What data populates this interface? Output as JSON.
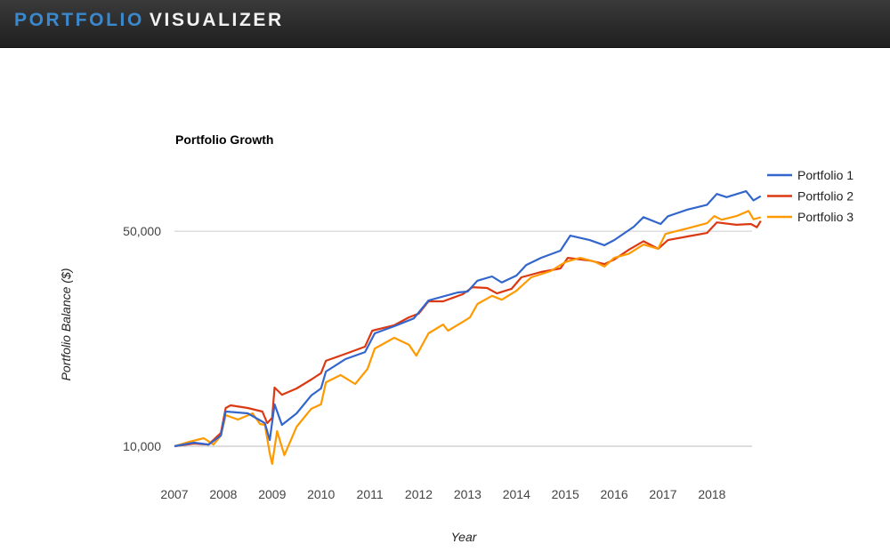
{
  "header": {
    "brand_part1": "PORTFOLIO",
    "brand_part2": "VISUALIZER"
  },
  "chart_data": {
    "type": "line",
    "title": "Portfolio Growth",
    "xlabel": "Year",
    "ylabel": "Portfolio Balance ($)",
    "yscale": "log",
    "ylim": [
      8000,
      80000
    ],
    "xlim": [
      2007,
      2019
    ],
    "x_ticks": [
      "2007",
      "2008",
      "2009",
      "2010",
      "2011",
      "2012",
      "2013",
      "2014",
      "2015",
      "2016",
      "2017",
      "2018"
    ],
    "y_ticks": [
      {
        "value": 10000,
        "label": "10,000"
      },
      {
        "value": 50000,
        "label": "50,000"
      }
    ],
    "grid": true,
    "legend_position": "right",
    "series": [
      {
        "name": "Portfolio 1",
        "color": "#3366cc",
        "x": [
          2007.0,
          2007.4,
          2007.7,
          2007.95,
          2008.05,
          2008.5,
          2008.85,
          2008.95,
          2009.05,
          2009.2,
          2009.5,
          2009.8,
          2010.0,
          2010.1,
          2010.5,
          2010.9,
          2011.1,
          2011.5,
          2011.9,
          2012.2,
          2012.8,
          2013.0,
          2013.2,
          2013.5,
          2013.7,
          2014.0,
          2014.2,
          2014.5,
          2014.9,
          2015.1,
          2015.5,
          2015.8,
          2016.0,
          2016.4,
          2016.6,
          2016.95,
          2017.1,
          2017.5,
          2017.9,
          2018.1,
          2018.3,
          2018.7,
          2018.85,
          2019.0
        ],
        "values": [
          10000,
          10270,
          10130,
          10830,
          12960,
          12790,
          11890,
          10470,
          13680,
          11730,
          12790,
          14620,
          15410,
          17490,
          19200,
          20230,
          23290,
          24550,
          26040,
          29780,
          31620,
          31830,
          34530,
          35640,
          34060,
          35880,
          38830,
          40960,
          43240,
          48380,
          46800,
          45020,
          46800,
          51700,
          55560,
          52780,
          55930,
          58800,
          60930,
          66120,
          64520,
          67500,
          63000,
          65000
        ]
      },
      {
        "name": "Portfolio 2",
        "color": "#dc3912",
        "x": [
          2007.0,
          2007.4,
          2007.7,
          2007.95,
          2008.05,
          2008.15,
          2008.5,
          2008.8,
          2008.9,
          2009.0,
          2009.05,
          2009.2,
          2009.5,
          2009.8,
          2010.0,
          2010.1,
          2010.5,
          2010.9,
          2011.05,
          2011.5,
          2011.8,
          2012.0,
          2012.2,
          2012.5,
          2012.9,
          2013.1,
          2013.4,
          2013.6,
          2013.9,
          2014.1,
          2014.5,
          2014.9,
          2015.05,
          2015.5,
          2015.8,
          2016.0,
          2016.3,
          2016.6,
          2016.9,
          2017.1,
          2017.5,
          2017.9,
          2018.1,
          2018.5,
          2018.8,
          2018.92,
          2019.0
        ],
        "values": [
          10000,
          10200,
          10130,
          11050,
          13310,
          13580,
          13310,
          12960,
          11890,
          12370,
          15520,
          14700,
          15410,
          16470,
          17280,
          18950,
          19970,
          21070,
          23760,
          24740,
          26240,
          26990,
          29580,
          29580,
          31200,
          32900,
          32700,
          31400,
          32500,
          35400,
          36850,
          37850,
          40960,
          40160,
          39100,
          40450,
          43550,
          46390,
          43850,
          46800,
          48100,
          49350,
          53420,
          52480,
          52800,
          51500,
          54000
        ]
      },
      {
        "name": "Portfolio 3",
        "color": "#ff9900",
        "x": [
          2007.0,
          2007.3,
          2007.6,
          2007.8,
          2007.95,
          2008.05,
          2008.3,
          2008.6,
          2008.75,
          2008.85,
          2008.95,
          2009.0,
          2009.1,
          2009.25,
          2009.5,
          2009.8,
          2010.0,
          2010.1,
          2010.4,
          2010.7,
          2010.95,
          2011.1,
          2011.5,
          2011.8,
          2011.95,
          2012.2,
          2012.5,
          2012.6,
          2012.9,
          2013.05,
          2013.2,
          2013.5,
          2013.7,
          2014.0,
          2014.3,
          2014.7,
          2015.0,
          2015.3,
          2015.6,
          2015.8,
          2016.0,
          2016.3,
          2016.6,
          2016.9,
          2017.05,
          2017.5,
          2017.9,
          2018.05,
          2018.2,
          2018.5,
          2018.75,
          2018.85,
          2019.0
        ],
        "values": [
          10000,
          10330,
          10620,
          10130,
          10830,
          12620,
          12210,
          12790,
          11810,
          11730,
          9480,
          8760,
          11200,
          9350,
          11580,
          13230,
          13680,
          16140,
          17040,
          15930,
          17830,
          20780,
          22520,
          21370,
          19700,
          23290,
          24870,
          23760,
          25360,
          26240,
          29000,
          30840,
          29940,
          32030,
          35400,
          37090,
          39710,
          40960,
          39840,
          38380,
          40960,
          42270,
          45260,
          43850,
          49000,
          51100,
          53100,
          56000,
          54500,
          56000,
          58200,
          54700,
          55500
        ]
      }
    ]
  }
}
